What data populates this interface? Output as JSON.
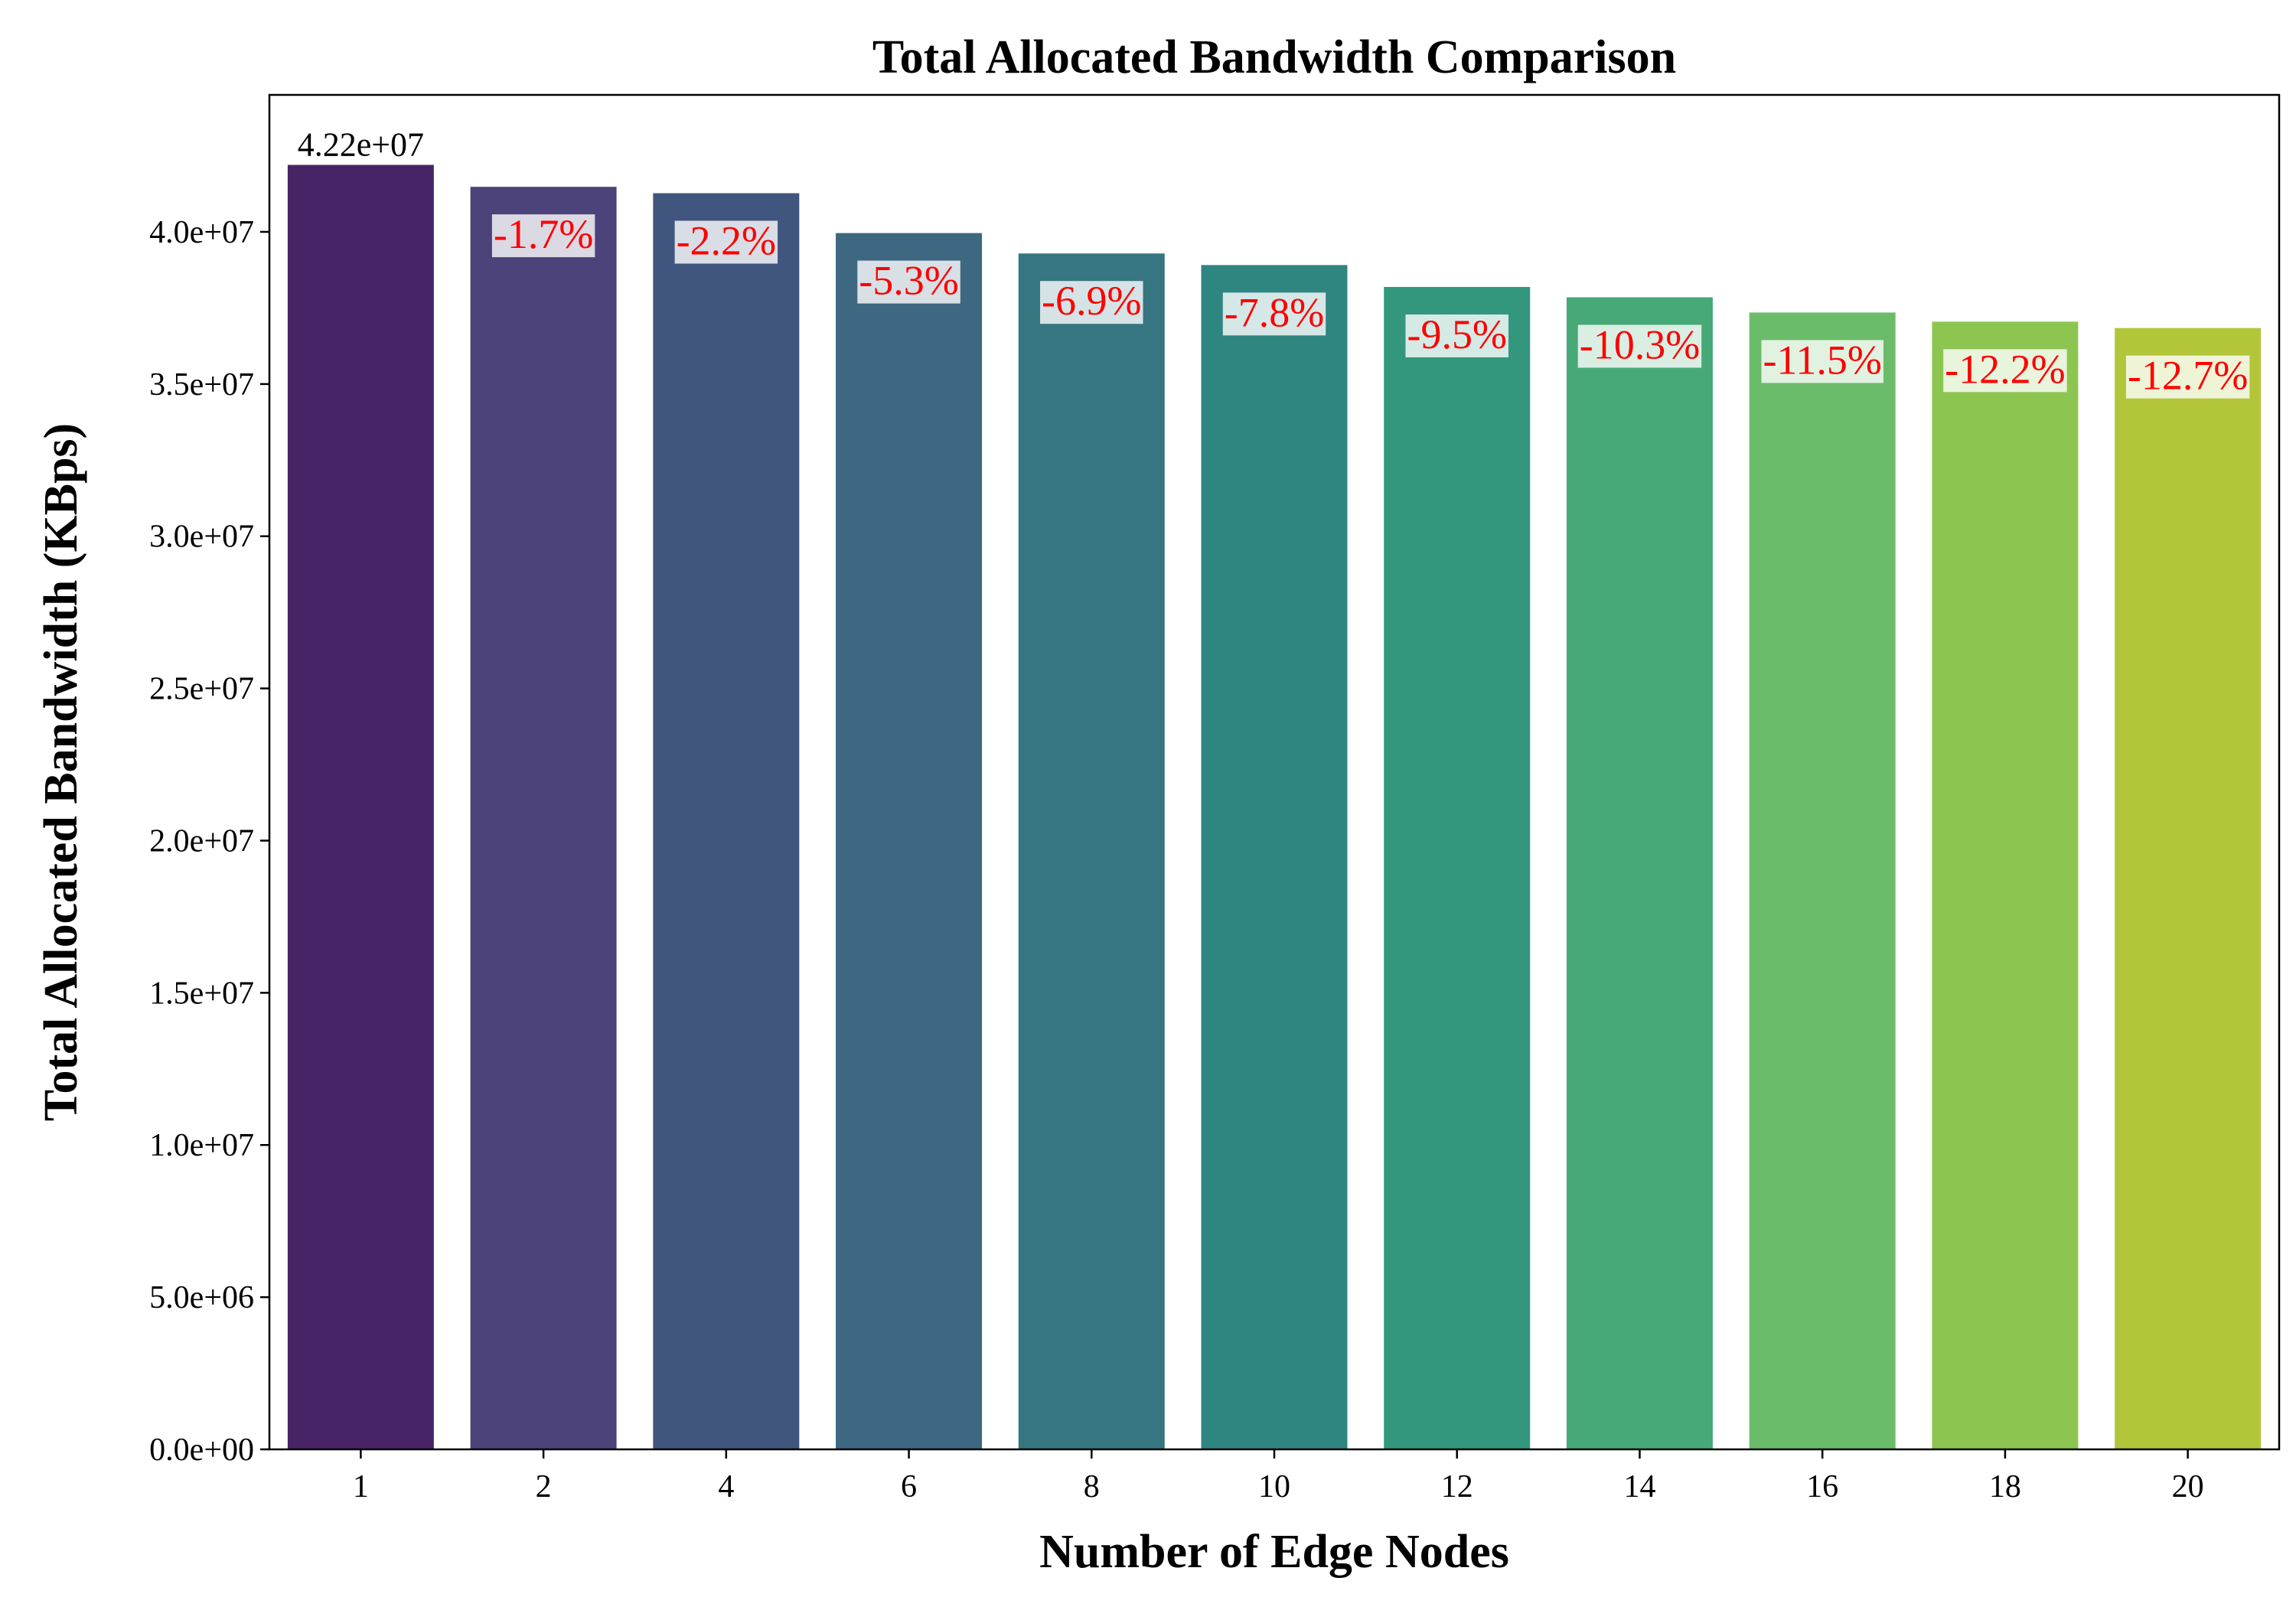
{
  "chart_data": {
    "type": "bar",
    "title": "Total Allocated Bandwidth Comparison",
    "xlabel": "Number of Edge Nodes",
    "ylabel": "Total Allocated Bandwidth (KBps)",
    "categories": [
      "1",
      "2",
      "4",
      "6",
      "8",
      "10",
      "12",
      "14",
      "16",
      "18",
      "20"
    ],
    "values": [
      42200000,
      41480000,
      41270000,
      39960000,
      39290000,
      38910000,
      38190000,
      37850000,
      37350000,
      37050000,
      36840000
    ],
    "ylim": [
      0,
      44500000
    ],
    "yticks": [
      0,
      5000000,
      10000000,
      15000000,
      20000000,
      25000000,
      30000000,
      35000000,
      40000000
    ],
    "ytick_labels": [
      "0.0e+00",
      "5.0e+06",
      "1.0e+07",
      "1.5e+07",
      "2.0e+07",
      "2.5e+07",
      "3.0e+07",
      "3.5e+07",
      "4.0e+07"
    ],
    "baseline_label": "4.22e+07",
    "change_labels": [
      "",
      "-1.7%",
      "-2.2%",
      "-5.3%",
      "-6.9%",
      "-7.8%",
      "-9.5%",
      "-10.3%",
      "-11.5%",
      "-12.2%",
      "-12.7%"
    ],
    "colors": [
      "#482466",
      "#4b4379",
      "#41567e",
      "#3e6781",
      "#367680",
      "#2f8580",
      "#33977e",
      "#47a977",
      "#6bbc6a",
      "#8dc551",
      "#b3c63a"
    ],
    "change_label_color": "#ff0000",
    "grid": false,
    "legend": "none"
  }
}
